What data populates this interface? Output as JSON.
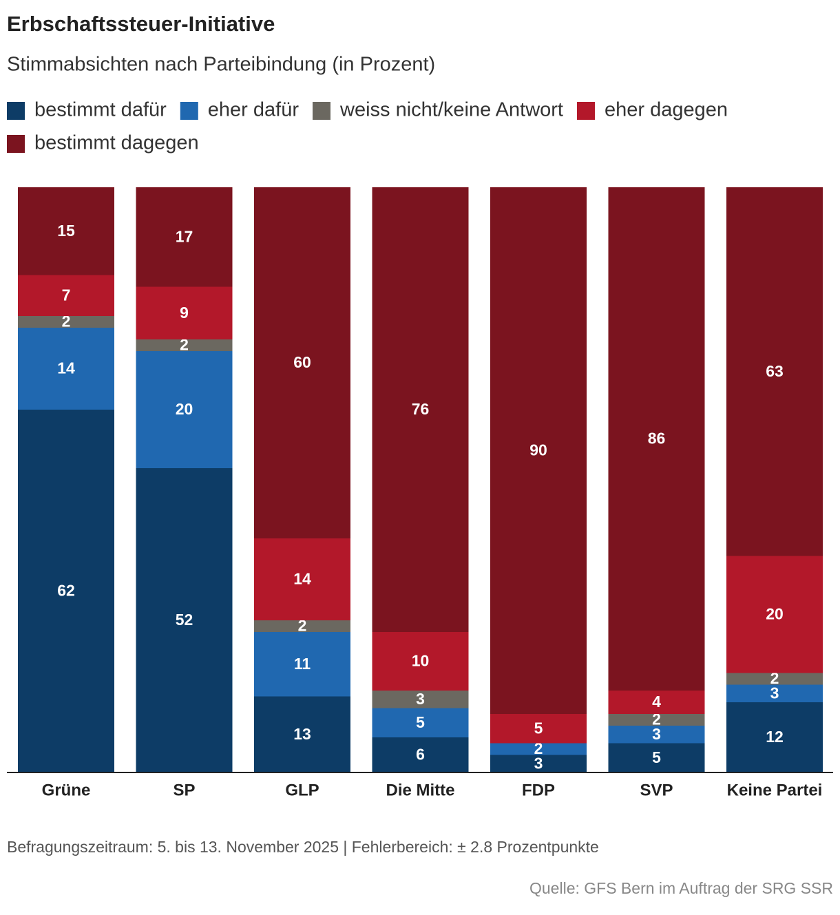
{
  "chart_data": {
    "type": "stacked_bar",
    "title": "Erbschaftssteuer-Initiative",
    "subtitle": "Stimmabsichten nach Parteibindung (in Prozent)",
    "categories": [
      "Grüne",
      "SP",
      "GLP",
      "Die Mitte",
      "FDP",
      "SVP",
      "Keine Partei"
    ],
    "series": [
      {
        "name": "bestimmt dafür",
        "color": "#0d3c66",
        "values": [
          62,
          52,
          13,
          6,
          3,
          5,
          12
        ]
      },
      {
        "name": "eher dafür",
        "color": "#2068b0",
        "values": [
          14,
          20,
          11,
          5,
          2,
          3,
          3
        ]
      },
      {
        "name": "weiss nicht/keine Antwort",
        "color": "#6b6860",
        "values": [
          2,
          2,
          2,
          3,
          null,
          2,
          2
        ]
      },
      {
        "name": "eher dagegen",
        "color": "#b3182a",
        "values": [
          7,
          9,
          14,
          10,
          5,
          4,
          20
        ]
      },
      {
        "name": "bestimmt dagegen",
        "color": "#7b141f",
        "values": [
          15,
          17,
          60,
          76,
          90,
          86,
          63
        ]
      }
    ],
    "ylim": [
      0,
      100
    ],
    "note": "Befragungszeitraum: 5. bis 13. November 2025 | Fehlerbereich: ± 2.8 Prozentpunkte",
    "source": "Quelle: GFS Bern im Auftrag der SRG SSR"
  }
}
